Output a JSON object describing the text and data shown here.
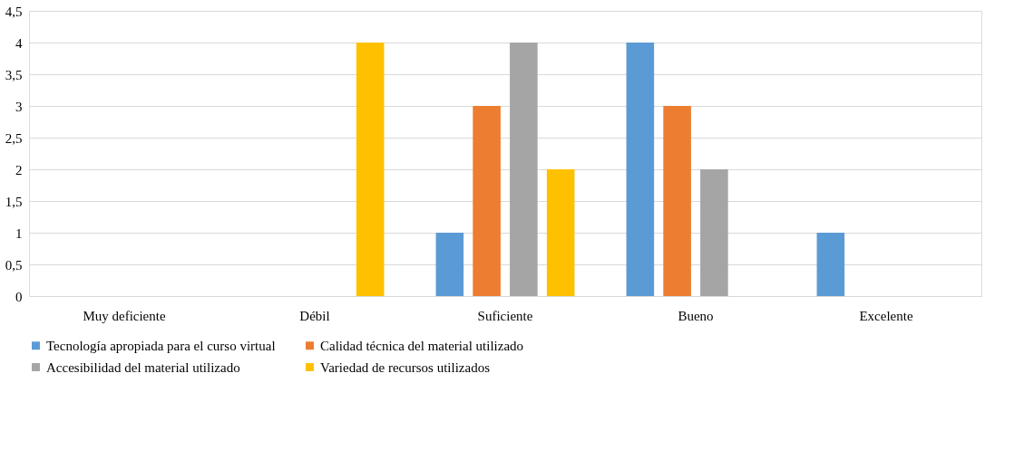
{
  "chart_data": {
    "type": "bar",
    "categories": [
      "Muy deficiente",
      "Débil",
      "Suficiente",
      "Bueno",
      "Excelente"
    ],
    "series": [
      {
        "name": "Tecnología apropiada para el curso virtual",
        "color": "#5b9bd5",
        "values": [
          0,
          0,
          1,
          4,
          1
        ]
      },
      {
        "name": "Calidad técnica del material utilizado",
        "color": "#ed7d31",
        "values": [
          0,
          0,
          3,
          3,
          0
        ]
      },
      {
        "name": "Accesibilidad del material utilizado",
        "color": "#a5a5a5",
        "values": [
          0,
          0,
          4,
          2,
          0
        ]
      },
      {
        "name": "Variedad de recursos utilizados",
        "color": "#ffc000",
        "values": [
          0,
          4,
          2,
          0,
          0
        ]
      }
    ],
    "ylim": [
      0,
      4.5
    ],
    "yticks": [
      0,
      {
        "value": 0.5,
        "label": "0,5"
      },
      1,
      {
        "value": 1.5,
        "label": "1,5"
      },
      2,
      {
        "value": 2.5,
        "label": "2,5"
      },
      3,
      {
        "value": 3.5,
        "label": "3,5"
      },
      4,
      {
        "value": 4.5,
        "label": "4,5"
      }
    ],
    "grid": "y",
    "legend": "bottom"
  }
}
